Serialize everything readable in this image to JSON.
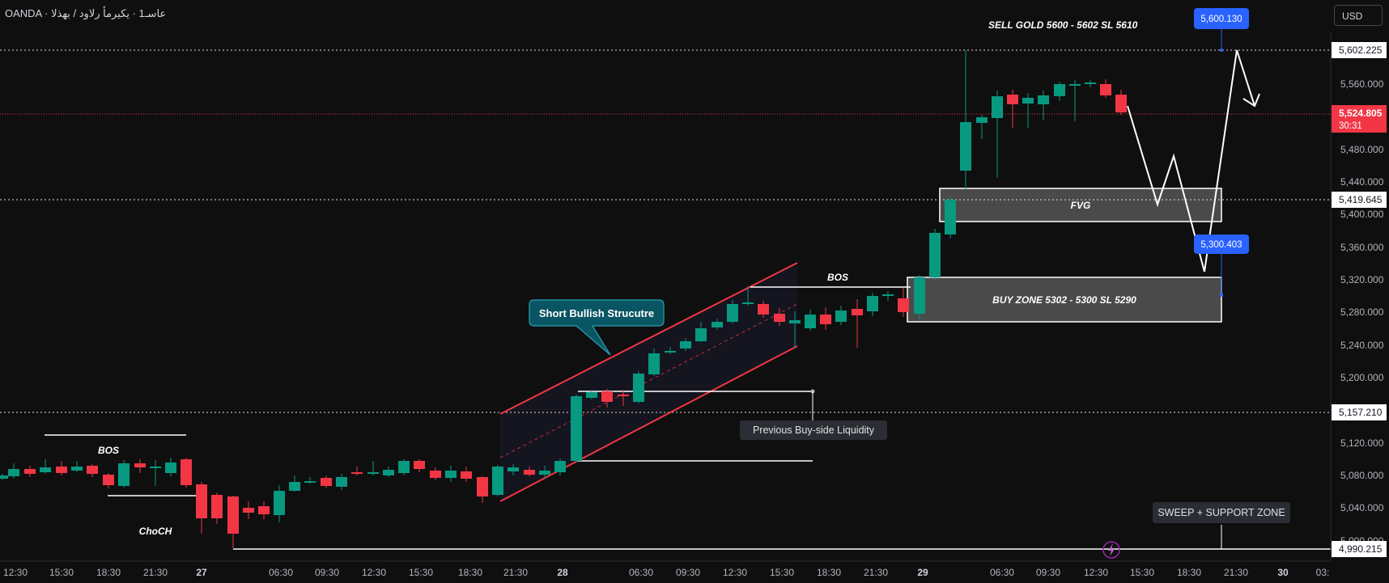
{
  "header": {
    "symbol": "OANDA · عاسـ1 · يكيرمأ رلاود / بهذلا",
    "currency": "USD"
  },
  "price_axis": {
    "ticks": [
      "5,560.000",
      "5,480.000",
      "5,440.000",
      "5,400.000",
      "5,360.000",
      "5,320.000",
      "5,280.000",
      "5,240.000",
      "5,200.000",
      "5,120.000",
      "5,080.000",
      "5,040.000",
      "5,000.000"
    ],
    "markers": {
      "top_level": "5,602.225",
      "current_price": "5,524.805",
      "countdown": "30:31",
      "fvg_level": "5,419.645",
      "liquidity_level": "5,157.210",
      "low_level": "4,990.215"
    }
  },
  "time_axis": {
    "labels": [
      "12:30",
      "15:30",
      "18:30",
      "21:30",
      "27",
      "06:30",
      "09:30",
      "12:30",
      "15:30",
      "18:30",
      "21:30",
      "28",
      "06:30",
      "09:30",
      "12:30",
      "15:30",
      "18:30",
      "21:30",
      "29",
      "06:30",
      "09:30",
      "12:30",
      "15:30",
      "18:30",
      "21:30",
      "30",
      "03:"
    ]
  },
  "annotations": {
    "sell_text": "SELL GOLD 5600 - 5602 SL 5610",
    "sell_badge": "5,600.130",
    "fvg_text": "FVG",
    "buy_text": "BUY ZONE 5302 - 5300 SL 5290",
    "buy_badge": "5,300.403",
    "bos_left": "BOS",
    "choch": "ChoCH",
    "bos_mid": "BOS",
    "callout": "Short Bullish Strucutre",
    "prev_liquidity": "Previous Buy-side Liquidity",
    "sweep": "SWEEP + SUPPORT ZONE",
    "lightning_icon": "lightning-icon"
  },
  "colors": {
    "up": "#089981",
    "down": "#f23645",
    "badge_blue": "#2962ff",
    "background": "#0f0f0f"
  }
}
